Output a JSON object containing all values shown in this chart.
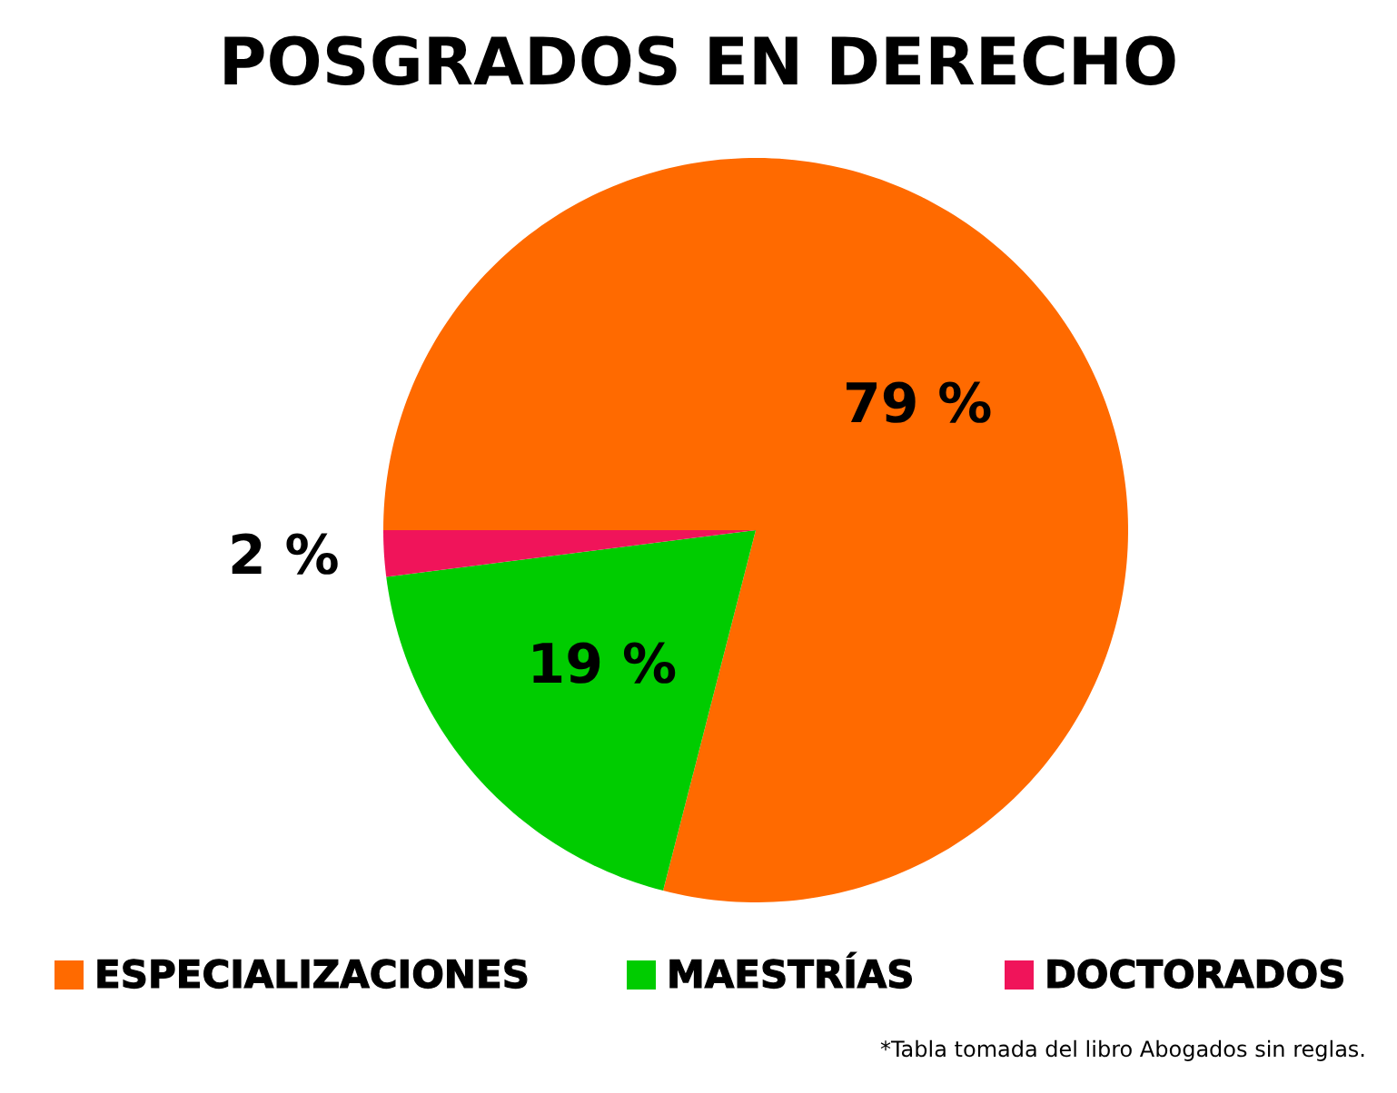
{
  "chart_data": {
    "type": "pie",
    "title": "POSGRADOS EN DERECHO",
    "categories": [
      "ESPECIALIZACIONES",
      "MAESTRÍAS",
      "DOCTORADOS"
    ],
    "values": [
      79,
      19,
      2
    ],
    "colors": [
      "#ff6a00",
      "#00cc00",
      "#f0145a"
    ],
    "value_labels": [
      "79 %",
      "19 %",
      "2 %"
    ],
    "legend": "bottom",
    "annotations": [
      "*Tabla tomada del libro Abogados sin reglas."
    ]
  }
}
